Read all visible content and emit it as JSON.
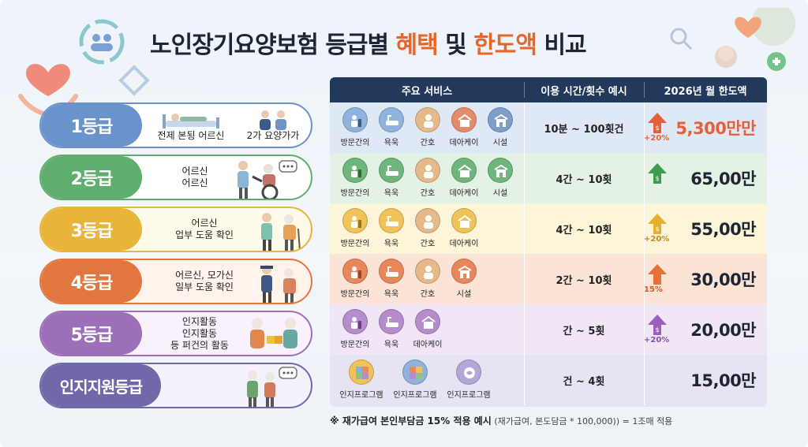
{
  "title": {
    "part1": "노인장기요양보험 등급별 ",
    "part2": "혜택",
    "part3": " 및 ",
    "part4": "한도액",
    "part5": " 비교"
  },
  "colors": {
    "grade1": "#6a93cb",
    "grade2": "#5fae6e",
    "grade3": "#e8b53a",
    "grade4": "#e2763f",
    "grade5": "#9c70b8",
    "cognitive": "#7068a8",
    "header": "#23395b",
    "accent": "#e6662b"
  },
  "grades": [
    {
      "label": "1등급",
      "desc1": "전제 본됭 어르신",
      "desc2": "2가 요양가가"
    },
    {
      "label": "2등급",
      "desc1": "어르신",
      "desc2": "어르신"
    },
    {
      "label": "3등급",
      "desc1": "어르신",
      "desc2": "업부 도움 확인"
    },
    {
      "label": "4등급",
      "desc1": "어르신, 모가신",
      "desc2": "일부 도움 확인"
    },
    {
      "label": "5등급",
      "desc1": "인지활동",
      "desc2": "인지활동",
      "desc3": "등 퍼건의 활동"
    },
    {
      "label": "인지지원등급"
    }
  ],
  "table": {
    "headers": {
      "services": "주요 서비스",
      "usage": "이용 시간/횟수 예시",
      "limit": "2026년 월 한도액"
    },
    "rows": [
      {
        "services": [
          "방문간의",
          "욕욱",
          "간호",
          "데아케이",
          "시설"
        ],
        "usage": "10분 ~ 100횟건",
        "amount": "5,300만만",
        "pct": "+20%"
      },
      {
        "services": [
          "방문간의",
          "욕욱",
          "간호",
          "데아케이",
          "시설"
        ],
        "usage": "4간 ~ 10횟",
        "amount": "65,00만",
        "pct": ""
      },
      {
        "services": [
          "방문간의",
          "욕욱",
          "간호",
          "데아케이"
        ],
        "usage": "4간 ~ 10횟",
        "amount": "55,00만",
        "pct": "+20%"
      },
      {
        "services": [
          "방문간의",
          "욕욱",
          "간호",
          "시설"
        ],
        "usage": "2간 ~ 10횟",
        "amount": "30,00만",
        "pct": "15%"
      },
      {
        "services": [
          "방문간의",
          "욕욱",
          "데아케이"
        ],
        "usage": "간 ~ 5횟",
        "amount": "20,00만",
        "pct": "+20%"
      },
      {
        "services": [
          "인지프로그램",
          "인지프로그램",
          "인지프로그램"
        ],
        "usage": "건 ~ 4횟",
        "amount": "15,00만",
        "pct": ""
      }
    ]
  },
  "footnote": {
    "mark": "※ 재가급여 본인부담금 15% 적용 예시",
    "detail": "(재가급여, 본도담금 * 100,000)) = 1조매 적용"
  }
}
